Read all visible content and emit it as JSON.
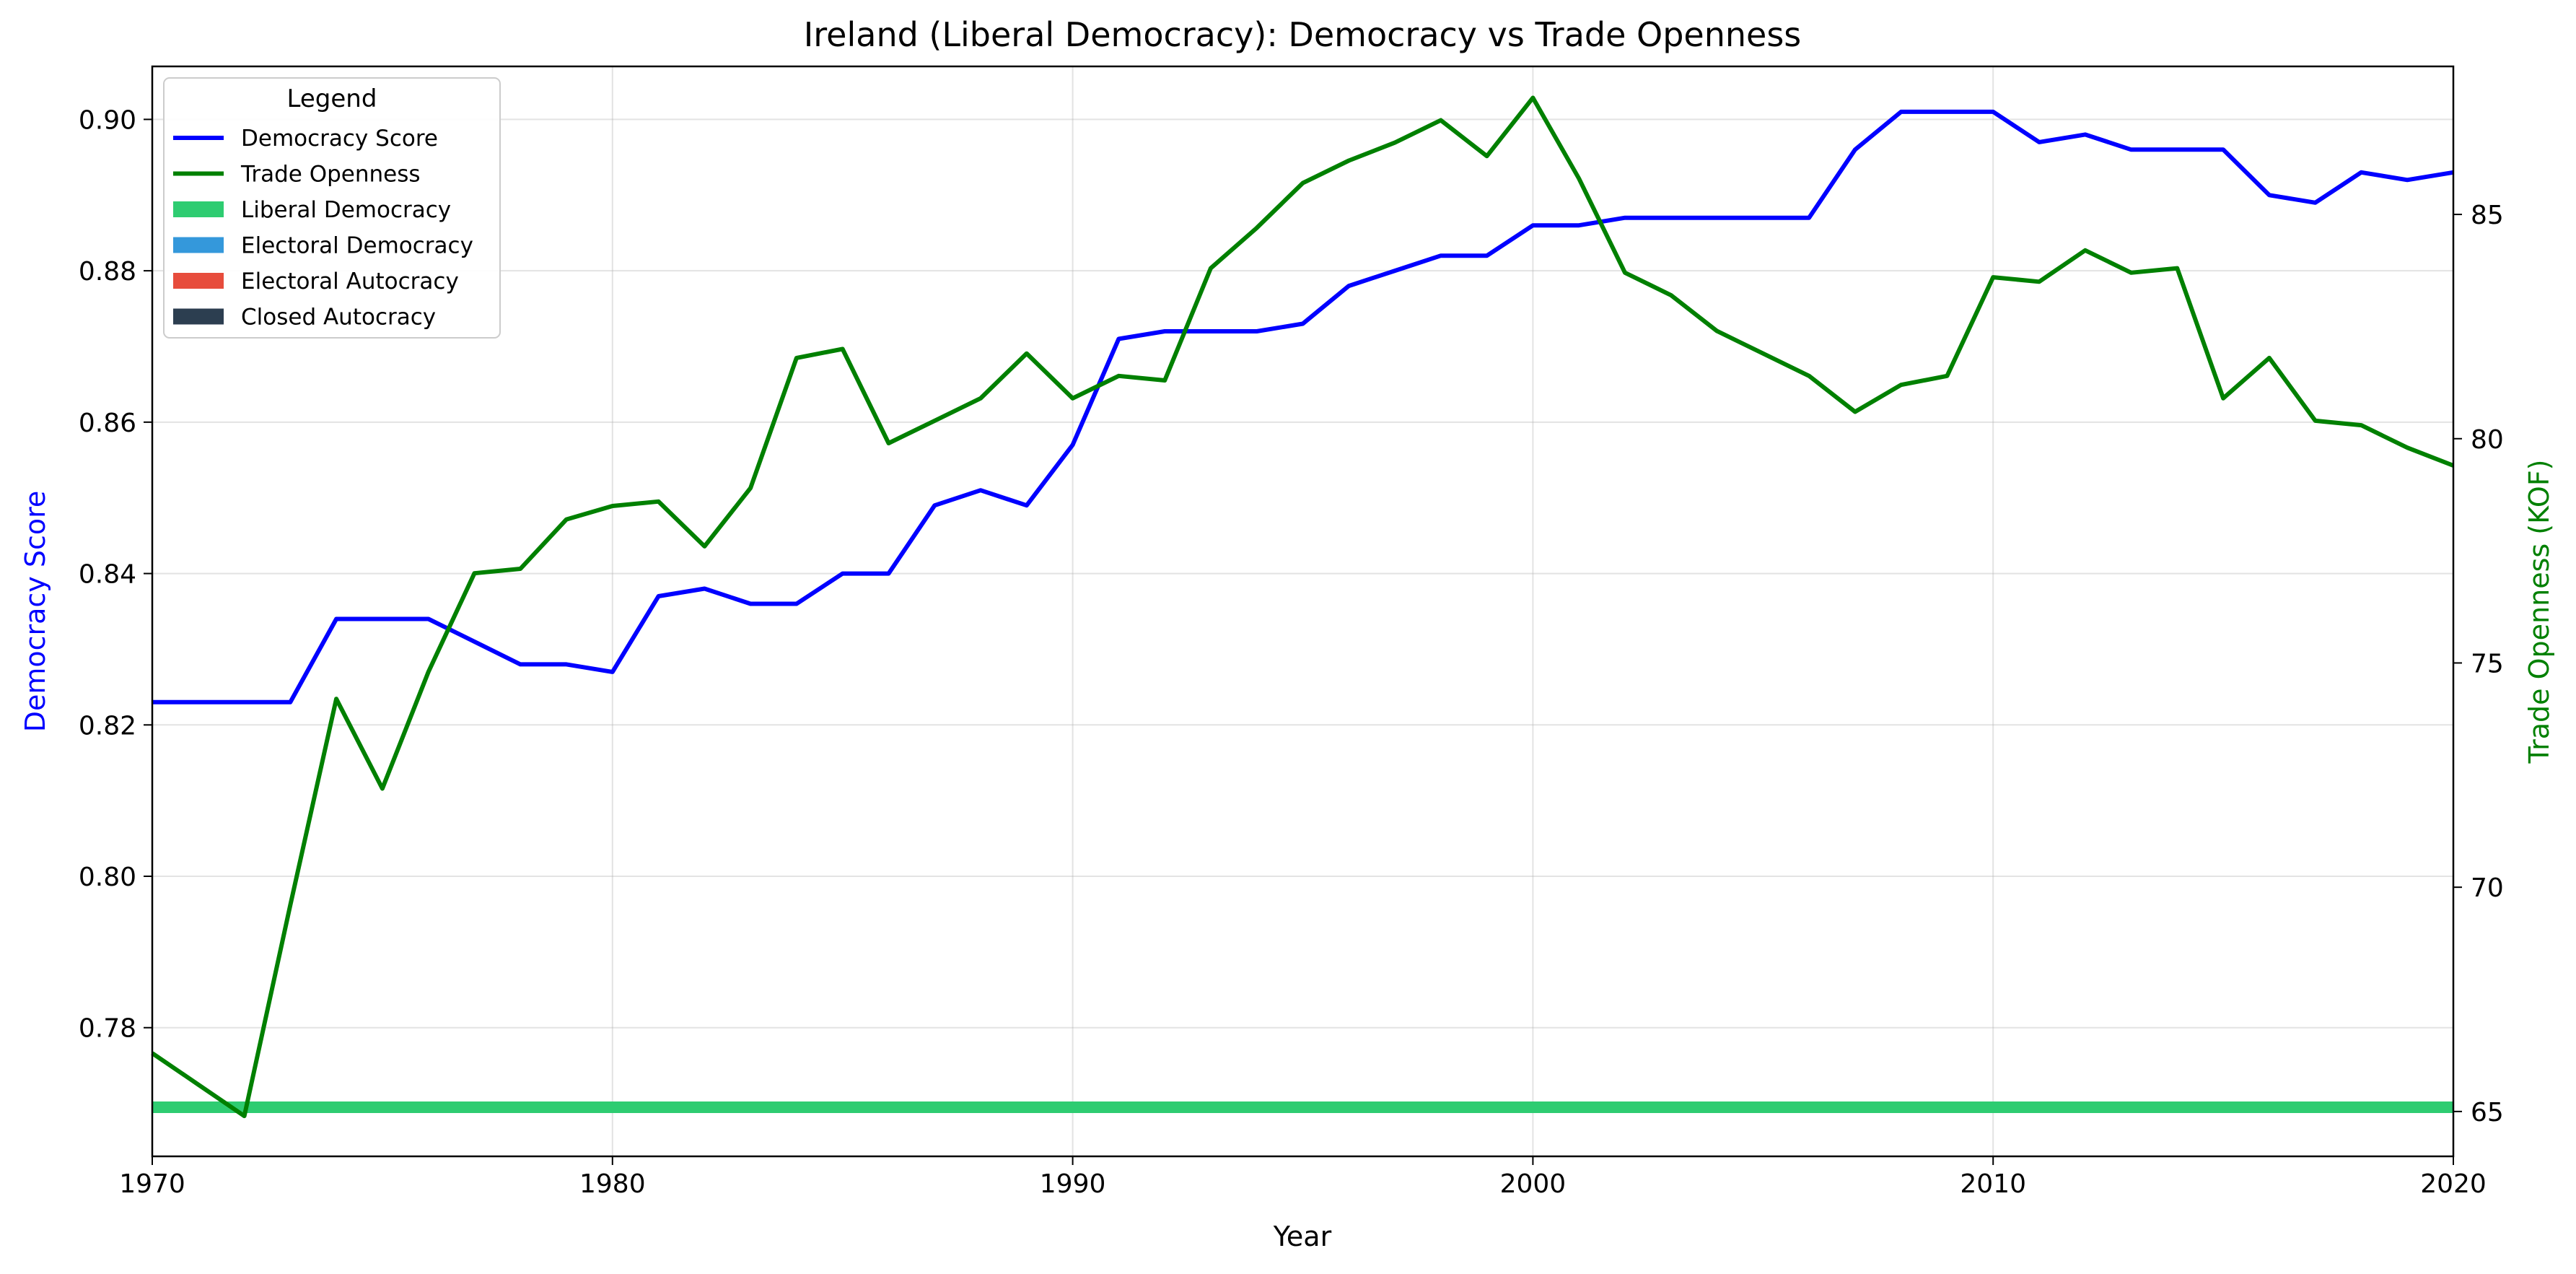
{
  "chart_data": {
    "type": "line",
    "title": "Ireland (Liberal Democracy): Democracy vs Trade Openness",
    "xlabel": "Year",
    "ylabel": "Democracy Score",
    "y2label": "Trade Openness (KOF)",
    "xlim": [
      1970,
      2020
    ],
    "ylim": [
      0.763,
      0.907
    ],
    "y2lim": [
      64.0,
      88.3
    ],
    "x_ticks": [
      1970,
      1980,
      1990,
      2000,
      2010,
      2020
    ],
    "y_ticks": [
      "0.78",
      "0.80",
      "0.82",
      "0.84",
      "0.86",
      "0.88",
      "0.90"
    ],
    "y2_ticks": [
      "65",
      "70",
      "75",
      "80",
      "85"
    ],
    "grid": true,
    "legend": {
      "title": "Legend",
      "placement": "top-left",
      "entries": [
        {
          "label": "Democracy Score",
          "kind": "line",
          "color": "#0000ff"
        },
        {
          "label": "Trade Openness",
          "kind": "line",
          "color": "#008000"
        },
        {
          "label": "Liberal Democracy",
          "kind": "patch",
          "color": "#2ecc71"
        },
        {
          "label": "Electoral Democracy",
          "kind": "patch",
          "color": "#3498db"
        },
        {
          "label": "Electoral Autocracy",
          "kind": "patch",
          "color": "#e74c3c"
        },
        {
          "label": "Closed Autocracy",
          "kind": "patch",
          "color": "#2c3e50"
        }
      ]
    },
    "x": [
      1970,
      1971,
      1972,
      1973,
      1974,
      1975,
      1976,
      1977,
      1978,
      1979,
      1980,
      1981,
      1982,
      1983,
      1984,
      1985,
      1986,
      1987,
      1988,
      1989,
      1990,
      1991,
      1992,
      1993,
      1994,
      1995,
      1996,
      1997,
      1998,
      1999,
      2000,
      2001,
      2002,
      2003,
      2004,
      2005,
      2006,
      2007,
      2008,
      2009,
      2010,
      2011,
      2012,
      2013,
      2014,
      2015,
      2016,
      2017,
      2018,
      2019,
      2020
    ],
    "series": [
      {
        "name": "Democracy Score",
        "axis": "left",
        "color": "#0000ff",
        "values": [
          0.823,
          0.823,
          0.823,
          0.823,
          0.834,
          0.834,
          0.834,
          0.831,
          0.828,
          0.828,
          0.827,
          0.837,
          0.838,
          0.836,
          0.836,
          0.84,
          0.84,
          0.849,
          0.851,
          0.849,
          0.857,
          0.871,
          0.872,
          0.872,
          0.872,
          0.873,
          0.878,
          0.88,
          0.882,
          0.882,
          0.886,
          0.886,
          0.887,
          0.887,
          0.887,
          0.887,
          0.887,
          0.896,
          0.901,
          0.901,
          0.901,
          0.897,
          0.898,
          0.896,
          0.896,
          0.896,
          0.89,
          0.889,
          0.893,
          0.892,
          0.893
        ]
      },
      {
        "name": "Trade Openness",
        "axis": "right",
        "color": "#008000",
        "values": [
          66.3,
          65.6,
          64.9,
          69.6,
          74.2,
          72.2,
          74.8,
          77.0,
          77.1,
          78.2,
          78.5,
          78.6,
          77.6,
          78.9,
          81.8,
          82.0,
          79.9,
          80.4,
          80.9,
          81.9,
          80.9,
          81.4,
          81.3,
          83.8,
          84.7,
          85.7,
          86.2,
          86.6,
          87.1,
          86.3,
          87.6,
          85.8,
          83.7,
          83.2,
          82.4,
          81.9,
          81.4,
          80.6,
          81.2,
          81.4,
          83.6,
          83.5,
          84.2,
          83.7,
          83.8,
          80.9,
          81.8,
          80.4,
          80.3,
          79.8,
          79.4
        ]
      }
    ],
    "bands": [
      {
        "label": "Liberal Democracy",
        "color": "#2ecc71",
        "x_start": 1970,
        "x_end": 2020
      }
    ]
  }
}
